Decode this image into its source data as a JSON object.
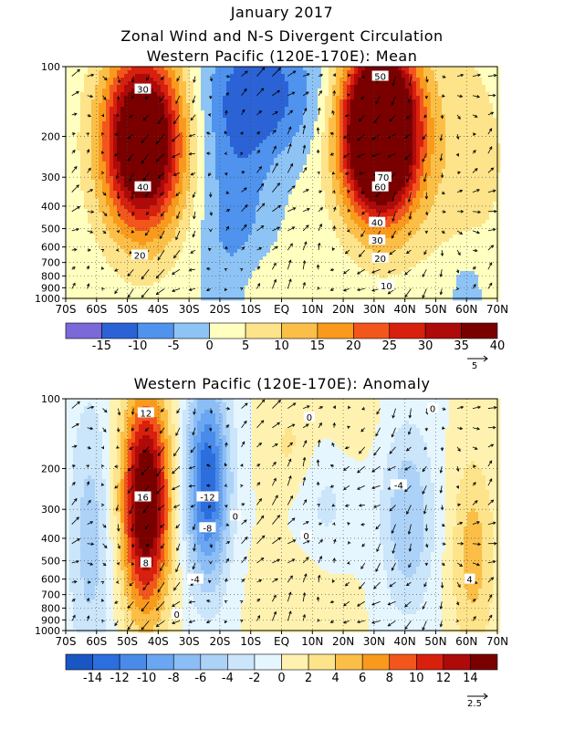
{
  "header": {
    "title": "January 2017",
    "subtitle": "Zonal Wind and N-S Divergent Circulation"
  },
  "chart_data": [
    {
      "type": "heatmap",
      "title": "Western Pacific (120E-170E): Mean",
      "x_ticks": [
        "70S",
        "60S",
        "50S",
        "40S",
        "30S",
        "20S",
        "10S",
        "EQ",
        "10N",
        "20N",
        "30N",
        "40N",
        "50N",
        "60N",
        "70N"
      ],
      "y_ticks": [
        "100",
        "200",
        "300",
        "400",
        "500",
        "600",
        "700",
        "800",
        "900",
        "1000"
      ],
      "ylim": [
        1000,
        100
      ],
      "y_scale": "log-pressure",
      "colorbar": {
        "tick_labels": [
          "-15",
          "-10",
          "-5",
          "0",
          "5",
          "10",
          "15",
          "20",
          "25",
          "30",
          "35",
          "40"
        ],
        "colors": [
          "#7b68d9",
          "#2b63d6",
          "#4f93ee",
          "#8ec4f5",
          "#ffffc0",
          "#fde38a",
          "#fbbf47",
          "#f99a1c",
          "#f2561c",
          "#d8200e",
          "#ae0a0a",
          "#7a0000"
        ]
      },
      "vector_ref": "5",
      "contour_labels": [
        {
          "text": "30",
          "lat": -45,
          "p": 125
        },
        {
          "text": "40",
          "lat": -45,
          "p": 330
        },
        {
          "text": "20",
          "lat": -46,
          "p": 650
        },
        {
          "text": "50",
          "lat": 32,
          "p": 110
        },
        {
          "text": "70",
          "lat": 33,
          "p": 300
        },
        {
          "text": "60",
          "lat": 32,
          "p": 330
        },
        {
          "text": "40",
          "lat": 31,
          "p": 470
        },
        {
          "text": "30",
          "lat": 31,
          "p": 560
        },
        {
          "text": "20",
          "lat": 32,
          "p": 670
        },
        {
          "text": "10",
          "lat": 34,
          "p": 880
        }
      ]
    },
    {
      "type": "heatmap",
      "title": "Western Pacific (120E-170E): Anomaly",
      "x_ticks": [
        "70S",
        "60S",
        "50S",
        "40S",
        "30S",
        "20S",
        "10S",
        "EQ",
        "10N",
        "20N",
        "30N",
        "40N",
        "50N",
        "60N",
        "70N"
      ],
      "y_ticks": [
        "100",
        "200",
        "300",
        "400",
        "500",
        "600",
        "700",
        "800",
        "900",
        "1000"
      ],
      "ylim": [
        1000,
        100
      ],
      "y_scale": "log-pressure",
      "colorbar": {
        "tick_labels": [
          "-14",
          "-12",
          "-10",
          "-8",
          "-6",
          "-4",
          "-2",
          "0",
          "2",
          "4",
          "6",
          "8",
          "10",
          "12",
          "14"
        ],
        "colors": [
          "#1a55c4",
          "#2c6ede",
          "#4a8bea",
          "#6aa6f1",
          "#8cbdf5",
          "#acd2f8",
          "#cbe5fa",
          "#e6f6ff",
          "#fff2b0",
          "#fde38a",
          "#fbbf47",
          "#f99a1c",
          "#f2561c",
          "#d8200e",
          "#ae0a0a",
          "#7a0000"
        ]
      },
      "vector_ref": "2.5",
      "contour_labels": [
        {
          "text": "12",
          "lat": -44,
          "p": 115
        },
        {
          "text": "16",
          "lat": -45,
          "p": 265
        },
        {
          "text": "8",
          "lat": -44,
          "p": 510
        },
        {
          "text": "-12",
          "lat": -24,
          "p": 265
        },
        {
          "text": "-8",
          "lat": -24,
          "p": 360
        },
        {
          "text": "-4",
          "lat": -28,
          "p": 600
        },
        {
          "text": "0",
          "lat": -15,
          "p": 320
        },
        {
          "text": "0",
          "lat": 8,
          "p": 390
        },
        {
          "text": "0",
          "lat": 9,
          "p": 120
        },
        {
          "text": "0",
          "lat": 49,
          "p": 110
        },
        {
          "text": "-4",
          "lat": 38,
          "p": 235
        },
        {
          "text": "4",
          "lat": 61,
          "p": 600
        },
        {
          "text": "0",
          "lat": -34,
          "p": 850
        }
      ]
    }
  ]
}
